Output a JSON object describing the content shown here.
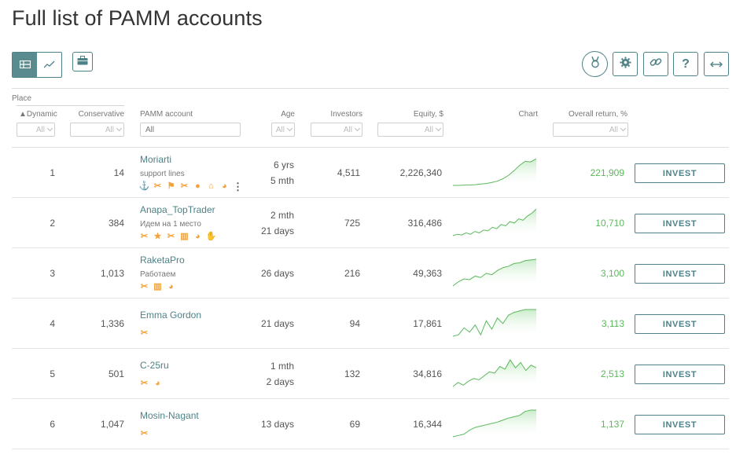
{
  "page": {
    "title": "Full list of PAMM accounts"
  },
  "toolbar": {
    "view_table_icon": "table-view-icon",
    "view_chart_icon": "chart-view-icon",
    "portfolio_icon": "briefcase-icon",
    "tools": [
      {
        "icon": "medal-icon"
      },
      {
        "icon": "gear-icon"
      },
      {
        "icon": "link-icon"
      },
      {
        "icon": "question-icon",
        "glyph": "?"
      },
      {
        "icon": "expand-horizontal-icon",
        "glyph": "⟷"
      }
    ]
  },
  "columns": {
    "place": "Place",
    "dynamic": "▲Dynamic",
    "conservative": "Conservative",
    "pamm_account": "PAMM account",
    "age": "Age",
    "investors": "Investors",
    "equity": "Equity, $",
    "chart": "Chart",
    "overall_return": "Overall return, %"
  },
  "filters": {
    "all": "All",
    "account_placeholder": "All"
  },
  "colors": {
    "accent": "#4e8287",
    "positive": "#5cb85c",
    "badge": "#f1a23a"
  },
  "invest_label": "INVEST",
  "rows": [
    {
      "dynamic": "1",
      "conservative": "14",
      "name": "Moriarti",
      "subtitle": "support lines",
      "badges": [
        "⚓",
        "✂",
        "⚑",
        "✂",
        "●",
        "⌂",
        "◕"
      ],
      "more": "⋮",
      "age_line1": "6 yrs",
      "age_line2": "5 mth",
      "investors": "4,511",
      "equity": "2,226,340",
      "return": "221,909",
      "chart_series": [
        2,
        2,
        2.2,
        2.3,
        2.5,
        3,
        3.4,
        4.2,
        5.2,
        7,
        9.5,
        13,
        17,
        20,
        19.6,
        22
      ]
    },
    {
      "dynamic": "2",
      "conservative": "384",
      "name": "Anapa_TopTrader",
      "subtitle": "Идем на 1 место",
      "badges": [
        "✂",
        "★",
        "✂",
        "▥",
        "◕",
        "✋"
      ],
      "more": "",
      "age_line1": "2 mth",
      "age_line2": "21 days",
      "investors": "725",
      "equity": "316,486",
      "return": "10,710",
      "chart_series": [
        3,
        4,
        3.5,
        5,
        4,
        6,
        5,
        7,
        6.5,
        9,
        8,
        11,
        10,
        13,
        12,
        15,
        14,
        17,
        19,
        22
      ]
    },
    {
      "dynamic": "3",
      "conservative": "1,013",
      "name": "RaketaPro",
      "subtitle": "Работаем",
      "badges": [
        "✂",
        "▥",
        "◕"
      ],
      "more": "",
      "age_line1": "26 days",
      "age_line2": "",
      "investors": "216",
      "equity": "49,363",
      "return": "3,100",
      "chart_series": [
        3,
        6,
        8,
        7.5,
        10,
        9,
        12,
        11,
        14,
        16,
        17,
        19,
        19.5,
        21,
        21.5,
        22
      ]
    },
    {
      "dynamic": "4",
      "conservative": "1,336",
      "name": "Emma Gordon",
      "subtitle": "",
      "badges": [
        "✂"
      ],
      "more": "",
      "age_line1": "21 days",
      "age_line2": "",
      "investors": "94",
      "equity": "17,861",
      "return": "3,113",
      "chart_series": [
        3,
        4,
        9,
        6,
        11,
        4,
        14,
        8,
        16,
        12,
        18,
        20,
        21,
        22,
        22,
        22
      ]
    },
    {
      "dynamic": "5",
      "conservative": "501",
      "name": "C-25ru",
      "subtitle": "",
      "badges": [
        "✂",
        "◕"
      ],
      "more": "",
      "age_line1": "1 mth",
      "age_line2": "2 days",
      "investors": "132",
      "equity": "34,816",
      "return": "2,513",
      "chart_series": [
        2,
        5,
        3,
        6,
        8,
        7,
        10,
        13,
        12,
        17,
        15,
        22,
        16,
        20,
        14,
        18,
        16
      ]
    },
    {
      "dynamic": "6",
      "conservative": "1,047",
      "name": "Mosin-Nagant",
      "subtitle": "",
      "badges": [
        "✂"
      ],
      "more": "",
      "age_line1": "13 days",
      "age_line2": "",
      "investors": "69",
      "equity": "16,344",
      "return": "1,137",
      "chart_series": [
        2,
        3,
        4,
        7,
        9,
        10,
        11,
        12,
        13,
        14.5,
        16,
        17,
        18,
        21,
        22,
        22
      ]
    }
  ]
}
